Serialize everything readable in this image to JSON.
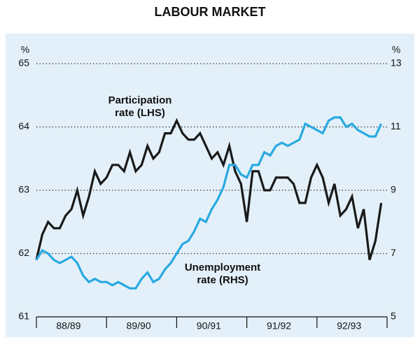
{
  "chart_data": {
    "type": "line",
    "title": "LABOUR MARKET",
    "y_unit": "%",
    "y2_unit": "%",
    "categories": [
      null,
      null,
      null,
      null,
      null,
      null,
      "88/89",
      null,
      null,
      null,
      null,
      null,
      null,
      null,
      null,
      null,
      null,
      null,
      "89/90",
      null,
      null,
      null,
      null,
      null,
      null,
      null,
      null,
      null,
      null,
      null,
      "90/91",
      null,
      null,
      null,
      null,
      null,
      null,
      null,
      null,
      null,
      null,
      null,
      "91/92",
      null,
      null,
      null,
      null,
      null,
      null,
      null,
      null,
      null,
      null,
      null,
      "92/93",
      null,
      null,
      null,
      null,
      null
    ],
    "series": [
      {
        "name": "Participation rate (LHS)",
        "color": "#1a1a1a",
        "axis": "y",
        "values": [
          61.9,
          62.3,
          62.5,
          62.4,
          62.4,
          62.6,
          62.7,
          63.0,
          62.6,
          62.9,
          63.3,
          63.1,
          63.2,
          63.4,
          63.4,
          63.3,
          63.6,
          63.3,
          63.4,
          63.7,
          63.5,
          63.6,
          63.9,
          63.9,
          64.1,
          63.9,
          63.8,
          63.8,
          63.9,
          63.7,
          63.5,
          63.6,
          63.4,
          63.7,
          63.3,
          63.1,
          62.5,
          63.3,
          63.3,
          63.0,
          63.0,
          63.2,
          63.2,
          63.2,
          63.1,
          62.8,
          62.8,
          63.2,
          63.4,
          63.2,
          62.8,
          63.1,
          62.6,
          62.7,
          62.9,
          62.4,
          62.7,
          61.9,
          62.2,
          62.8
        ]
      },
      {
        "name": "Unemployment rate (RHS)",
        "color": "#29a9e1",
        "axis": "y2",
        "values": [
          6.8,
          7.1,
          7.0,
          6.8,
          6.7,
          6.8,
          6.9,
          6.7,
          6.3,
          6.1,
          6.2,
          6.1,
          6.1,
          6.0,
          6.1,
          6.0,
          5.9,
          5.9,
          6.2,
          6.4,
          6.1,
          6.2,
          6.5,
          6.7,
          7.0,
          7.3,
          7.4,
          7.7,
          8.1,
          8.0,
          8.4,
          8.7,
          9.1,
          9.8,
          9.8,
          9.5,
          9.4,
          9.8,
          9.8,
          10.2,
          10.1,
          10.4,
          10.5,
          10.4,
          10.5,
          10.6,
          11.1,
          11.0,
          10.9,
          10.8,
          11.2,
          11.3,
          11.3,
          11.0,
          11.1,
          10.9,
          10.8,
          10.7,
          10.7,
          11.1
        ]
      }
    ],
    "annotations": [
      [
        "Participation",
        "rate (LHS)"
      ],
      [
        "Unemployment",
        "rate (RHS)"
      ]
    ],
    "ylim": [
      61,
      65
    ],
    "yticks": [
      61,
      62,
      63,
      64,
      65
    ],
    "y2lim": [
      5,
      13
    ],
    "y2ticks": [
      5,
      7,
      9,
      11,
      13
    ],
    "grid": true
  }
}
